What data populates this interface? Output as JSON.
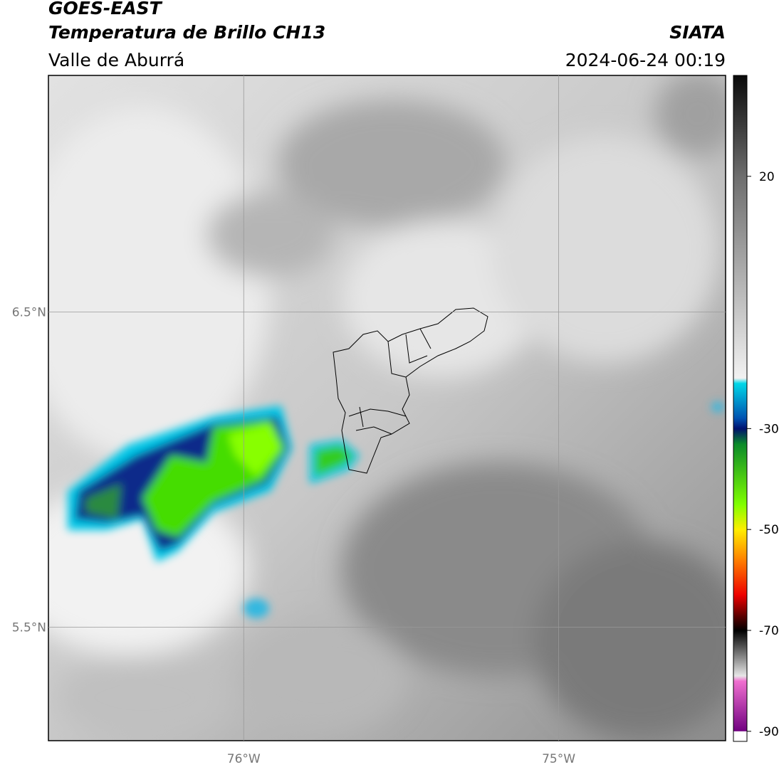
{
  "header": {
    "title": "GOES-EAST",
    "subtitle": "Temperatura de Brillo CH13",
    "region": "Valle de Aburrá",
    "source": "SIATA",
    "timestamp": "2024-06-24 00:19"
  },
  "map": {
    "xlim": [
      -76.62,
      -74.47
    ],
    "ylim": [
      5.14,
      7.25
    ],
    "lat_ticks": [
      {
        "value": 6.5,
        "label": "6.5°N"
      },
      {
        "value": 5.5,
        "label": "5.5°N"
      }
    ],
    "lon_ticks": [
      {
        "value": -76,
        "label": "76°W"
      },
      {
        "value": -75,
        "label": "75°W"
      }
    ]
  },
  "colorbar": {
    "lim": [
      -92,
      40
    ],
    "ticks": [
      20,
      -30,
      -50,
      -70,
      -90
    ],
    "colormap": [
      {
        "value": 40,
        "color": "#0a0a0a"
      },
      {
        "value": 20,
        "color": "#6e6e6e"
      },
      {
        "value": -20,
        "color": "#f2f2f2"
      },
      {
        "value": -21,
        "color": "#00d8e8"
      },
      {
        "value": -28,
        "color": "#0050b0"
      },
      {
        "value": -30,
        "color": "#00106e"
      },
      {
        "value": -33,
        "color": "#0a8a2a"
      },
      {
        "value": -45,
        "color": "#80ff00"
      },
      {
        "value": -50,
        "color": "#ffee00"
      },
      {
        "value": -56,
        "color": "#ff8000"
      },
      {
        "value": -63,
        "color": "#ee0000"
      },
      {
        "value": -67,
        "color": "#600000"
      },
      {
        "value": -70,
        "color": "#000000"
      },
      {
        "value": -79,
        "color": "#e8e8e8"
      },
      {
        "value": -80,
        "color": "#f070d0"
      },
      {
        "value": -90,
        "color": "#700080"
      },
      {
        "value": -90,
        "color": "#ffffff"
      },
      {
        "value": -92,
        "color": "#ffffff"
      }
    ]
  }
}
